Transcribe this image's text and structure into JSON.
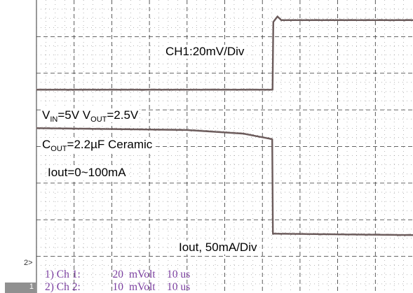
{
  "chart_data": {
    "type": "line",
    "title": "",
    "xlabel": "",
    "ylabel": "",
    "grid": true,
    "grid_divisions": {
      "x": 10,
      "y": 8
    },
    "time_axis": {
      "unit": "us",
      "per_division": 10,
      "range": [
        0,
        100
      ]
    },
    "series": [
      {
        "key": "ch1",
        "name": "CH1:20mV/Div",
        "color": "#6b5b5b",
        "y_range_div": [
          0,
          8
        ],
        "x": [
          0,
          62.7,
          62.9,
          64,
          65,
          100
        ],
        "y": [
          5.55,
          5.55,
          7.4,
          7.55,
          7.45,
          7.45
        ]
      },
      {
        "key": "ch2",
        "name": "Iout, 50mA/Div",
        "color": "#6b5b5b",
        "y_range_div": [
          0,
          8
        ],
        "x": [
          0,
          40,
          55,
          62.6,
          62.8,
          100
        ],
        "y": [
          4.5,
          4.45,
          4.35,
          4.2,
          1.62,
          1.58
        ]
      }
    ],
    "annotations": {
      "ch1_label": "CH1:20mV/Div",
      "vin_vout": {
        "v1": "V",
        "v1_sub": "IN",
        "v1_rest": "=5V  V",
        "v2_sub": "OUT",
        "v2_rest": "=2.5V"
      },
      "cout": {
        "c": "C",
        "c_sub": "OUT",
        "rest": "=2.2µF Ceramic"
      },
      "iout_range": "Iout=0~100mA",
      "ch2_label": "Iout, 50mA/Div"
    }
  },
  "status_bar": {
    "ch1": {
      "name": "1) Ch 1:",
      "value": "20",
      "unit": "mVolt",
      "time": "10 us"
    },
    "ch2": {
      "name": "2) Ch 2:",
      "value": "10",
      "unit": "mVolt",
      "time": "10 us"
    }
  },
  "markers": {
    "ch2": "2>",
    "ch1": "1"
  },
  "colors": {
    "grid": "#333333",
    "trace": "#6b5b5b",
    "status": "#7b3fa0",
    "marker_bg": "#909090"
  }
}
